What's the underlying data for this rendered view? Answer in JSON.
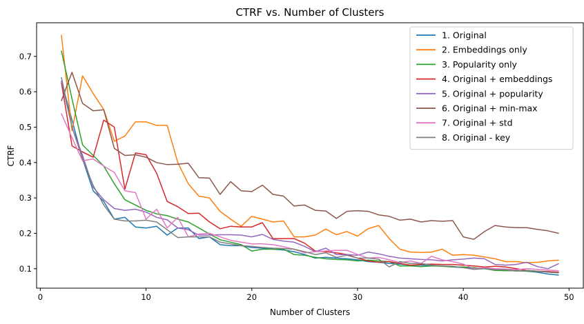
{
  "chart_data": {
    "type": "line",
    "title": "CTRF vs. Number of Clusters",
    "xlabel": "Number of Clusters",
    "ylabel": "CTRF",
    "xlim": [
      -0.35,
      51.35
    ],
    "ylim": [
      0.045,
      0.795
    ],
    "xticks": [
      0,
      10,
      20,
      30,
      40,
      50
    ],
    "yticks": [
      0.1,
      0.2,
      0.3,
      0.4,
      0.5,
      0.6,
      0.7
    ],
    "ytick_labels": [
      "0.1",
      "0.2",
      "0.3",
      "0.4",
      "0.5",
      "0.6",
      "0.7"
    ],
    "grid": false,
    "legend_position": "upper right",
    "x": [
      2,
      3,
      4,
      5,
      6,
      7,
      8,
      9,
      10,
      11,
      12,
      13,
      14,
      15,
      16,
      17,
      18,
      19,
      20,
      21,
      22,
      23,
      24,
      25,
      26,
      27,
      28,
      29,
      30,
      31,
      32,
      33,
      34,
      35,
      36,
      37,
      38,
      39,
      40,
      41,
      42,
      43,
      44,
      45,
      46,
      47,
      48,
      49
    ],
    "series": [
      {
        "name": "1. Original",
        "color": "#1f77b4",
        "values": [
          0.63,
          0.52,
          0.41,
          0.32,
          0.29,
          0.24,
          0.245,
          0.218,
          0.215,
          0.22,
          0.195,
          0.215,
          0.215,
          0.185,
          0.19,
          0.168,
          0.165,
          0.165,
          0.16,
          0.158,
          0.155,
          0.153,
          0.148,
          0.14,
          0.13,
          0.132,
          0.13,
          0.128,
          0.125,
          0.12,
          0.118,
          0.115,
          0.113,
          0.11,
          0.11,
          0.108,
          0.108,
          0.105,
          0.103,
          0.1,
          0.1,
          0.098,
          0.097,
          0.095,
          0.093,
          0.09,
          0.085,
          0.082
        ]
      },
      {
        "name": "2. Embeddings only",
        "color": "#ff7f0e",
        "values": [
          0.76,
          0.49,
          0.645,
          0.595,
          0.55,
          0.46,
          0.475,
          0.515,
          0.515,
          0.505,
          0.505,
          0.4,
          0.34,
          0.305,
          0.3,
          0.262,
          0.24,
          0.22,
          0.248,
          0.24,
          0.232,
          0.235,
          0.19,
          0.19,
          0.195,
          0.212,
          0.196,
          0.205,
          0.192,
          0.213,
          0.222,
          0.185,
          0.155,
          0.147,
          0.146,
          0.147,
          0.155,
          0.138,
          0.14,
          0.138,
          0.133,
          0.128,
          0.12,
          0.12,
          0.117,
          0.118,
          0.122,
          0.124
        ]
      },
      {
        "name": "3. Popularity only",
        "color": "#2ca02c",
        "values": [
          0.715,
          0.58,
          0.45,
          0.42,
          0.39,
          0.34,
          0.295,
          0.28,
          0.265,
          0.255,
          0.25,
          0.24,
          0.232,
          0.215,
          0.198,
          0.182,
          0.175,
          0.168,
          0.15,
          0.155,
          0.155,
          0.155,
          0.14,
          0.138,
          0.132,
          0.128,
          0.126,
          0.125,
          0.122,
          0.124,
          0.122,
          0.12,
          0.108,
          0.108,
          0.106,
          0.108,
          0.107,
          0.105,
          0.105,
          0.103,
          0.1,
          0.095,
          0.094,
          0.094,
          0.093,
          0.092,
          0.091,
          0.09
        ]
      },
      {
        "name": "4. Original + embeddings",
        "color": "#d62728",
        "values": [
          0.625,
          0.447,
          0.43,
          0.415,
          0.52,
          0.5,
          0.325,
          0.427,
          0.422,
          0.37,
          0.29,
          0.275,
          0.256,
          0.257,
          0.232,
          0.213,
          0.22,
          0.218,
          0.218,
          0.23,
          0.185,
          0.185,
          0.185,
          0.172,
          0.15,
          0.148,
          0.145,
          0.14,
          0.13,
          0.122,
          0.118,
          0.12,
          0.115,
          0.11,
          0.112,
          0.113,
          0.112,
          0.112,
          0.11,
          0.108,
          0.105,
          0.107,
          0.105,
          0.1,
          0.095,
          0.093,
          0.092,
          0.09
        ]
      },
      {
        "name": "5. Original + popularity",
        "color": "#9467bd",
        "values": [
          0.63,
          0.5,
          0.42,
          0.33,
          0.295,
          0.27,
          0.265,
          0.268,
          0.26,
          0.245,
          0.238,
          0.215,
          0.21,
          0.195,
          0.195,
          0.196,
          0.196,
          0.195,
          0.19,
          0.197,
          0.183,
          0.178,
          0.175,
          0.163,
          0.148,
          0.158,
          0.14,
          0.14,
          0.138,
          0.147,
          0.142,
          0.135,
          0.13,
          0.128,
          0.126,
          0.125,
          0.122,
          0.125,
          0.127,
          0.13,
          0.128,
          0.112,
          0.11,
          0.112,
          0.118,
          0.106,
          0.1,
          0.114
        ]
      },
      {
        "name": "6. Original + min-max",
        "color": "#8c564b",
        "values": [
          0.575,
          0.655,
          0.567,
          0.546,
          0.549,
          0.44,
          0.42,
          0.422,
          0.415,
          0.4,
          0.394,
          0.395,
          0.398,
          0.357,
          0.356,
          0.31,
          0.346,
          0.32,
          0.318,
          0.336,
          0.31,
          0.305,
          0.277,
          0.28,
          0.265,
          0.263,
          0.242,
          0.262,
          0.264,
          0.262,
          0.252,
          0.248,
          0.237,
          0.24,
          0.232,
          0.236,
          0.234,
          0.236,
          0.19,
          0.183,
          0.205,
          0.222,
          0.218,
          0.216,
          0.216,
          0.211,
          0.207,
          0.2
        ]
      },
      {
        "name": "7. Original + std",
        "color": "#e377c2",
        "values": [
          0.538,
          0.47,
          0.405,
          0.41,
          0.39,
          0.372,
          0.32,
          0.315,
          0.24,
          0.268,
          0.215,
          0.245,
          0.19,
          0.198,
          0.2,
          0.19,
          0.18,
          0.175,
          0.17,
          0.17,
          0.168,
          0.162,
          0.155,
          0.145,
          0.148,
          0.15,
          0.152,
          0.152,
          0.14,
          0.13,
          0.132,
          0.125,
          0.117,
          0.122,
          0.115,
          0.135,
          0.125,
          0.12,
          0.113,
          0.1,
          0.103,
          0.1,
          0.099,
          0.097,
          0.1,
          0.098,
          0.096,
          0.094
        ]
      },
      {
        "name": "8. Original - key",
        "color": "#7f7f7f",
        "values": [
          0.64,
          0.5,
          0.41,
          0.335,
          0.28,
          0.24,
          0.235,
          0.235,
          0.237,
          0.232,
          0.21,
          0.188,
          0.19,
          0.19,
          0.19,
          0.175,
          0.17,
          0.165,
          0.163,
          0.16,
          0.158,
          0.157,
          0.155,
          0.148,
          0.14,
          0.145,
          0.132,
          0.138,
          0.13,
          0.13,
          0.127,
          0.105,
          0.12,
          0.115,
          0.115,
          0.11,
          0.108,
          0.107,
          0.103,
          0.098,
          0.1,
          0.097,
          0.097,
          0.093,
          0.095,
          0.093,
          0.09,
          0.088
        ]
      }
    ]
  }
}
